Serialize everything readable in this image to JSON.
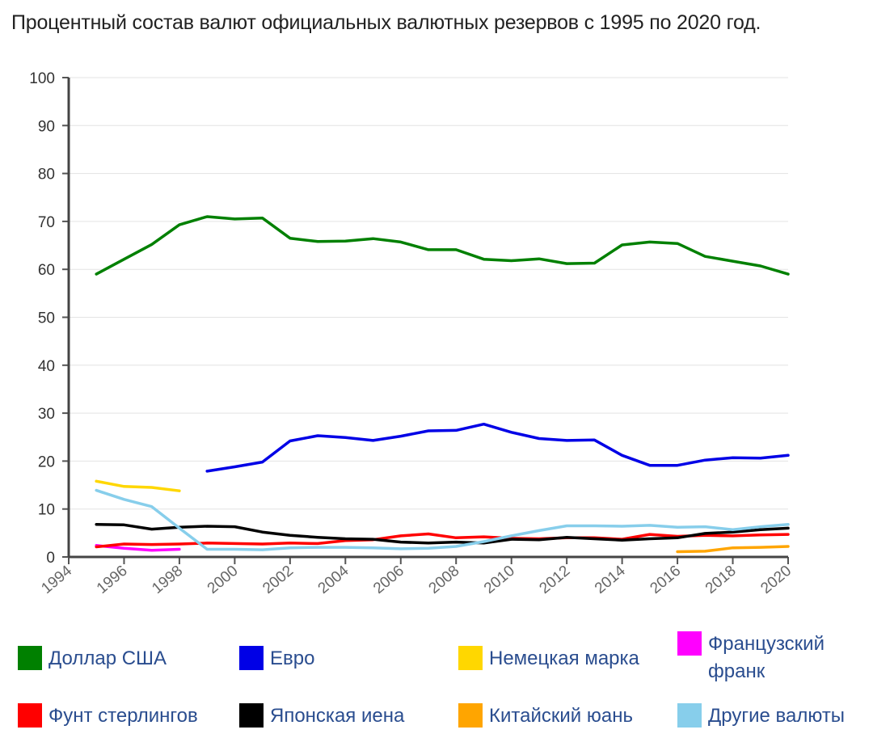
{
  "title": "Процентный состав валют официальных валютных резервов с 1995 по 2020 год.",
  "chart_data": {
    "type": "line",
    "title": "Процентный состав валют официальных валютных резервов с 1995 по 2020 год.",
    "xlim": [
      1994,
      2020
    ],
    "ylim": [
      0,
      100
    ],
    "x_ticks": [
      "1994",
      "1996",
      "1998",
      "2000",
      "2002",
      "2004",
      "2006",
      "2008",
      "2010",
      "2012",
      "2014",
      "2016",
      "2018",
      "2020"
    ],
    "y_ticks": [
      "0",
      "10",
      "20",
      "30",
      "40",
      "50",
      "60",
      "70",
      "80",
      "90",
      "100"
    ],
    "grid": true,
    "legend_position": "bottom",
    "series": [
      {
        "name": "Доллар США",
        "color": "#008000",
        "x": [
          1995,
          1996,
          1997,
          1998,
          1999,
          2000,
          2001,
          2002,
          2003,
          2004,
          2005,
          2006,
          2007,
          2008,
          2009,
          2010,
          2011,
          2012,
          2013,
          2014,
          2015,
          2016,
          2017,
          2018,
          2019,
          2020
        ],
        "y": [
          59.0,
          62.1,
          65.2,
          69.3,
          71.0,
          70.5,
          70.7,
          66.5,
          65.8,
          65.9,
          66.4,
          65.7,
          64.1,
          64.1,
          62.1,
          61.8,
          62.2,
          61.2,
          61.3,
          65.1,
          65.7,
          65.4,
          62.7,
          61.7,
          60.7,
          59.0
        ]
      },
      {
        "name": "Евро",
        "color": "#0000e6",
        "x": [
          1999,
          2000,
          2001,
          2002,
          2003,
          2004,
          2005,
          2006,
          2007,
          2008,
          2009,
          2010,
          2011,
          2012,
          2013,
          2014,
          2015,
          2016,
          2017,
          2018,
          2019,
          2020
        ],
        "y": [
          17.9,
          18.8,
          19.8,
          24.2,
          25.3,
          24.9,
          24.3,
          25.2,
          26.3,
          26.4,
          27.7,
          26.0,
          24.7,
          24.3,
          24.4,
          21.2,
          19.1,
          19.1,
          20.2,
          20.7,
          20.6,
          21.2
        ]
      },
      {
        "name": "Немецкая марка",
        "color": "#ffd700",
        "x": [
          1995,
          1996,
          1997,
          1998
        ],
        "y": [
          15.8,
          14.7,
          14.5,
          13.8
        ]
      },
      {
        "name": "Французский франк",
        "color": "#ff00ff",
        "x": [
          1995,
          1996,
          1997,
          1998
        ],
        "y": [
          2.4,
          1.8,
          1.4,
          1.6
        ]
      },
      {
        "name": "Фунт стерлингов",
        "color": "#ff0000",
        "x": [
          1995,
          1996,
          1997,
          1998,
          1999,
          2000,
          2001,
          2002,
          2003,
          2004,
          2005,
          2006,
          2007,
          2008,
          2009,
          2010,
          2011,
          2012,
          2013,
          2014,
          2015,
          2016,
          2017,
          2018,
          2019,
          2020
        ],
        "y": [
          2.1,
          2.7,
          2.6,
          2.7,
          2.9,
          2.8,
          2.7,
          2.9,
          2.8,
          3.4,
          3.6,
          4.4,
          4.8,
          4.0,
          4.2,
          3.9,
          3.8,
          4.0,
          4.0,
          3.7,
          4.7,
          4.3,
          4.5,
          4.4,
          4.6,
          4.7
        ]
      },
      {
        "name": "Японская иена",
        "color": "#000000",
        "x": [
          1995,
          1996,
          1997,
          1998,
          1999,
          2000,
          2001,
          2002,
          2003,
          2004,
          2005,
          2006,
          2007,
          2008,
          2009,
          2010,
          2011,
          2012,
          2013,
          2014,
          2015,
          2016,
          2017,
          2018,
          2019,
          2020
        ],
        "y": [
          6.8,
          6.7,
          5.8,
          6.2,
          6.4,
          6.3,
          5.2,
          4.5,
          4.1,
          3.8,
          3.7,
          3.1,
          2.9,
          3.1,
          2.9,
          3.7,
          3.6,
          4.1,
          3.8,
          3.5,
          3.8,
          4.0,
          4.9,
          5.2,
          5.7,
          6.0
        ]
      },
      {
        "name": "Китайский юань",
        "color": "#ffa500",
        "x": [
          2016,
          2017,
          2018,
          2019,
          2020
        ],
        "y": [
          1.1,
          1.2,
          1.9,
          2.0,
          2.2
        ]
      },
      {
        "name": "Другие валюты",
        "color": "#87ceeb",
        "x": [
          1995,
          1996,
          1997,
          1998,
          1999,
          2000,
          2001,
          2002,
          2003,
          2004,
          2005,
          2006,
          2007,
          2008,
          2009,
          2010,
          2011,
          2012,
          2013,
          2014,
          2015,
          2016,
          2017,
          2018,
          2019,
          2020
        ],
        "y": [
          13.9,
          12.0,
          10.5,
          6.0,
          1.6,
          1.6,
          1.5,
          1.9,
          2.0,
          2.0,
          1.9,
          1.7,
          1.8,
          2.2,
          3.2,
          4.4,
          5.5,
          6.5,
          6.5,
          6.4,
          6.6,
          6.2,
          6.3,
          5.7,
          6.3,
          6.8
        ]
      }
    ]
  },
  "legend": {
    "usd": {
      "label": "Доллар США",
      "color": "#008000"
    },
    "eur": {
      "label": "Евро",
      "color": "#0000e6"
    },
    "dem": {
      "label": "Немецкая марка",
      "color": "#ffd700"
    },
    "frf": {
      "label": "Французский франк",
      "color": "#ff00ff"
    },
    "gbp": {
      "label": "Фунт стерлингов",
      "color": "#ff0000"
    },
    "jpy": {
      "label": "Японская иена",
      "color": "#000000"
    },
    "cny": {
      "label": "Китайский юань",
      "color": "#ffa500"
    },
    "other": {
      "label": "Другие валюты",
      "color": "#87ceeb"
    }
  }
}
